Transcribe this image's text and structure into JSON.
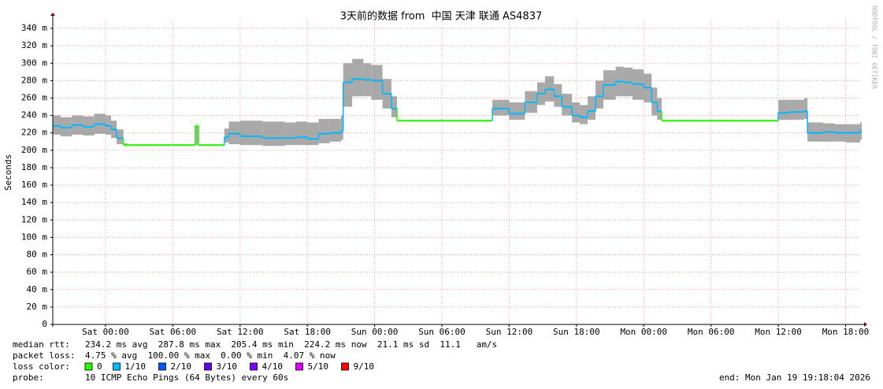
{
  "chart_data": {
    "type": "smokeping",
    "title": "3天前的数据 from  中国 天津 联通 AS4837",
    "y_label": "Seconds",
    "watermark": "RRDTOOL / TOBI OETIKER",
    "grid": true,
    "xlim": [
      -4.7,
      67.3
    ],
    "xticks": [
      {
        "value": 0,
        "label": "Sat 00:00"
      },
      {
        "value": 6,
        "label": "Sat 06:00"
      },
      {
        "value": 12,
        "label": "Sat 12:00"
      },
      {
        "value": 18,
        "label": "Sat 18:00"
      },
      {
        "value": 24,
        "label": "Sun 00:00"
      },
      {
        "value": 30,
        "label": "Sun 06:00"
      },
      {
        "value": 36,
        "label": "Sun 12:00"
      },
      {
        "value": 42,
        "label": "Sun 18:00"
      },
      {
        "value": 48,
        "label": "Mon 00:00"
      },
      {
        "value": 54,
        "label": "Mon 06:00"
      },
      {
        "value": 60,
        "label": "Mon 12:00"
      },
      {
        "value": 66,
        "label": "Mon 18:00"
      }
    ],
    "ylim": [
      0,
      0.35
    ],
    "yticks": [
      0,
      {
        "value": 0.02,
        "label": "20 m"
      },
      {
        "value": 0.04,
        "label": "40 m"
      },
      {
        "value": 0.06,
        "label": "60 m"
      },
      {
        "value": 0.08,
        "label": "80 m"
      },
      {
        "value": 0.1,
        "label": "100 m"
      },
      {
        "value": 0.12,
        "label": "120 m"
      },
      {
        "value": 0.14,
        "label": "140 m"
      },
      {
        "value": 0.16,
        "label": "160 m"
      },
      {
        "value": 0.18,
        "label": "180 m"
      },
      {
        "value": 0.2,
        "label": "200 m"
      },
      {
        "value": 0.22,
        "label": "220 m"
      },
      {
        "value": 0.24,
        "label": "240 m"
      },
      {
        "value": 0.26,
        "label": "260 m"
      },
      {
        "value": 0.28,
        "label": "280 m"
      },
      {
        "value": 0.3,
        "label": "300 m"
      },
      {
        "value": 0.32,
        "label": "320 m"
      },
      {
        "value": 0.34,
        "label": "340 m"
      }
    ],
    "x": [
      -4.7,
      -4,
      -3,
      -2,
      -1,
      0,
      0.5,
      1,
      1.6,
      2,
      4,
      6,
      7.7,
      8,
      8.3,
      10,
      10.6,
      11,
      12,
      14,
      16,
      17,
      18,
      19,
      20,
      21,
      21.2,
      22,
      23,
      23.7,
      24.7,
      25.5,
      26,
      28,
      30,
      32,
      34.3,
      34.5,
      35.5,
      36,
      37.4,
      38.5,
      39.2,
      40,
      40.7,
      41.6,
      42.3,
      43,
      43.7,
      44.4,
      45.5,
      46.2,
      47,
      48,
      48.7,
      49.2,
      49.6,
      52,
      55,
      58,
      59.6,
      60,
      61,
      62.3,
      62.6,
      64,
      65,
      66,
      67.3
    ],
    "median": [
      0.228,
      0.226,
      0.229,
      0.227,
      0.23,
      0.228,
      0.224,
      0.214,
      0.206,
      0.206,
      0.206,
      0.206,
      0.206,
      0.228,
      0.206,
      0.206,
      0.215,
      0.219,
      0.216,
      0.214,
      0.214,
      0.215,
      0.213,
      0.219,
      0.22,
      0.222,
      0.278,
      0.282,
      0.281,
      0.28,
      0.265,
      0.248,
      0.234,
      0.234,
      0.234,
      0.234,
      0.234,
      0.248,
      0.248,
      0.242,
      0.255,
      0.265,
      0.27,
      0.262,
      0.25,
      0.24,
      0.238,
      0.245,
      0.262,
      0.275,
      0.279,
      0.278,
      0.276,
      0.272,
      0.255,
      0.245,
      0.234,
      0.234,
      0.234,
      0.234,
      0.234,
      0.243,
      0.244,
      0.245,
      0.22,
      0.221,
      0.22,
      0.22,
      0.223
    ],
    "smoke_low": [
      0.218,
      0.216,
      0.218,
      0.217,
      0.219,
      0.218,
      0.214,
      0.207,
      0.205,
      0.205,
      0.205,
      0.205,
      0.205,
      0.206,
      0.205,
      0.205,
      0.209,
      0.207,
      0.206,
      0.205,
      0.206,
      0.206,
      0.206,
      0.208,
      0.21,
      0.212,
      0.25,
      0.262,
      0.262,
      0.258,
      0.248,
      0.238,
      0.233,
      0.233,
      0.233,
      0.233,
      0.233,
      0.24,
      0.24,
      0.235,
      0.243,
      0.252,
      0.256,
      0.25,
      0.24,
      0.232,
      0.23,
      0.235,
      0.248,
      0.258,
      0.262,
      0.262,
      0.258,
      0.255,
      0.24,
      0.235,
      0.233,
      0.233,
      0.233,
      0.233,
      0.233,
      0.235,
      0.235,
      0.236,
      0.21,
      0.21,
      0.21,
      0.209,
      0.212
    ],
    "smoke_high": [
      0.24,
      0.238,
      0.24,
      0.239,
      0.242,
      0.24,
      0.234,
      0.224,
      0.208,
      0.207,
      0.207,
      0.207,
      0.207,
      0.229,
      0.207,
      0.207,
      0.225,
      0.233,
      0.234,
      0.233,
      0.232,
      0.233,
      0.232,
      0.236,
      0.236,
      0.24,
      0.3,
      0.305,
      0.3,
      0.298,
      0.282,
      0.262,
      0.235,
      0.235,
      0.235,
      0.235,
      0.235,
      0.258,
      0.258,
      0.255,
      0.268,
      0.278,
      0.285,
      0.276,
      0.265,
      0.255,
      0.252,
      0.262,
      0.28,
      0.292,
      0.296,
      0.295,
      0.293,
      0.288,
      0.272,
      0.26,
      0.235,
      0.235,
      0.235,
      0.235,
      0.235,
      0.258,
      0.258,
      0.26,
      0.232,
      0.231,
      0.23,
      0.23,
      0.232
    ],
    "loss": [
      1,
      1,
      1,
      1,
      1,
      1,
      1,
      1,
      0,
      0,
      0,
      0,
      0,
      0,
      0,
      0,
      1,
      1,
      1,
      1,
      1,
      1,
      1,
      1,
      1,
      1,
      1,
      1,
      1,
      1,
      1,
      1,
      0,
      0,
      0,
      0,
      0,
      1,
      1,
      1,
      1,
      1,
      1,
      1,
      1,
      1,
      1,
      1,
      1,
      1,
      1,
      1,
      1,
      1,
      1,
      1,
      0,
      0,
      0,
      0,
      0,
      1,
      1,
      1,
      1,
      1,
      1,
      1,
      1
    ],
    "loss_label": "loss color:",
    "loss_colors": [
      {
        "label": "0",
        "color": "#26ff00"
      },
      {
        "label": "1/10",
        "color": "#00b8ff"
      },
      {
        "label": "2/10",
        "color": "#0059ff"
      },
      {
        "label": "3/10",
        "color": "#5e00ff"
      },
      {
        "label": "4/10",
        "color": "#7e00ff"
      },
      {
        "label": "5/10",
        "color": "#dd00ff"
      },
      {
        "label": "9/10",
        "color": "#ff0000"
      }
    ],
    "stats": [
      {
        "label": "median rtt:",
        "text": "234.2 ms avg  287.8 ms max  205.4 ms min  224.2 ms now  21.1 ms sd  11.1   am/s"
      },
      {
        "label": "packet loss:",
        "text": "4.75 % avg  100.00 % max  0.00 % min  4.07 % now"
      }
    ],
    "probe_label": "probe:",
    "probe": "10 ICMP Echo Pings (64 Bytes) every 60s",
    "end": "end: Mon Jan 19 19:18:04 2026"
  }
}
